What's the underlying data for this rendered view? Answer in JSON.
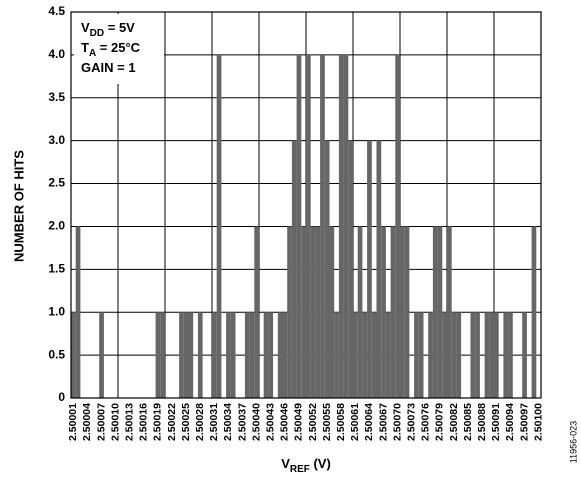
{
  "chart_data": {
    "type": "bar",
    "y_label": "NUMBER OF HITS",
    "x_label": [
      "V",
      "REF",
      " (V)"
    ],
    "annotations": [
      [
        "V",
        "DD",
        " = 5V"
      ],
      [
        "T",
        "A",
        " = 25°C"
      ],
      [
        "GAIN = 1"
      ]
    ],
    "figure_code": "11956-023",
    "color": "#666666",
    "grid": true,
    "categories": [
      "2.50001",
      null,
      null,
      "2.50004",
      null,
      null,
      "2.50007",
      null,
      null,
      "2.50010",
      null,
      null,
      "2.50013",
      null,
      null,
      "2.50016",
      null,
      null,
      "2.50019",
      null,
      null,
      "2.50022",
      null,
      null,
      "2.50025",
      null,
      null,
      "2.50028",
      null,
      null,
      "2.50031",
      null,
      null,
      "2.50034",
      null,
      null,
      "2.50037",
      null,
      null,
      "2.50040",
      null,
      null,
      "2.50043",
      null,
      null,
      "2.50046",
      null,
      null,
      "2.50049",
      null,
      null,
      "2.50052",
      null,
      null,
      "2.50055",
      null,
      null,
      "2.50058",
      null,
      null,
      "2.50061",
      null,
      null,
      "2.50064",
      null,
      null,
      "2.50067",
      null,
      null,
      "2.50070",
      null,
      null,
      "2.50073",
      null,
      null,
      "2.50076",
      null,
      null,
      "2.50079",
      null,
      null,
      "2.50082",
      null,
      null,
      "2.50085",
      null,
      null,
      "2.50088",
      null,
      null,
      "2.50091",
      null,
      null,
      "2.50094",
      null,
      null,
      "2.50097",
      null,
      null,
      "2.50100"
    ],
    "values": [
      1,
      2,
      0,
      0,
      0,
      0,
      1,
      0,
      0,
      0,
      0,
      0,
      0,
      0,
      0,
      0,
      0,
      0,
      1,
      1,
      0,
      0,
      0,
      1,
      1,
      1,
      0,
      1,
      0,
      0,
      1,
      4,
      0,
      1,
      1,
      0,
      0,
      1,
      1,
      2,
      0,
      1,
      1,
      0,
      1,
      1,
      2,
      3,
      4,
      2,
      4,
      2,
      2,
      4,
      3,
      2,
      1,
      4,
      4,
      3,
      1,
      2,
      1,
      3,
      1,
      3,
      2,
      1,
      2,
      4,
      2,
      2,
      0,
      1,
      1,
      0,
      1,
      2,
      2,
      1,
      2,
      1,
      1,
      0,
      0,
      1,
      1,
      0,
      1,
      1,
      1,
      0,
      1,
      1,
      0,
      0,
      1,
      0,
      2,
      0
    ],
    "ylim": [
      0,
      4.5
    ],
    "yticks": [
      0,
      0.5,
      {
        "value": 1,
        "label": "1.0"
      },
      1.5,
      {
        "value": 2,
        "label": "2.0"
      },
      2.5,
      {
        "value": 3,
        "label": "3.0"
      },
      3.5,
      {
        "value": 4,
        "label": "4.0"
      },
      4.5
    ]
  }
}
